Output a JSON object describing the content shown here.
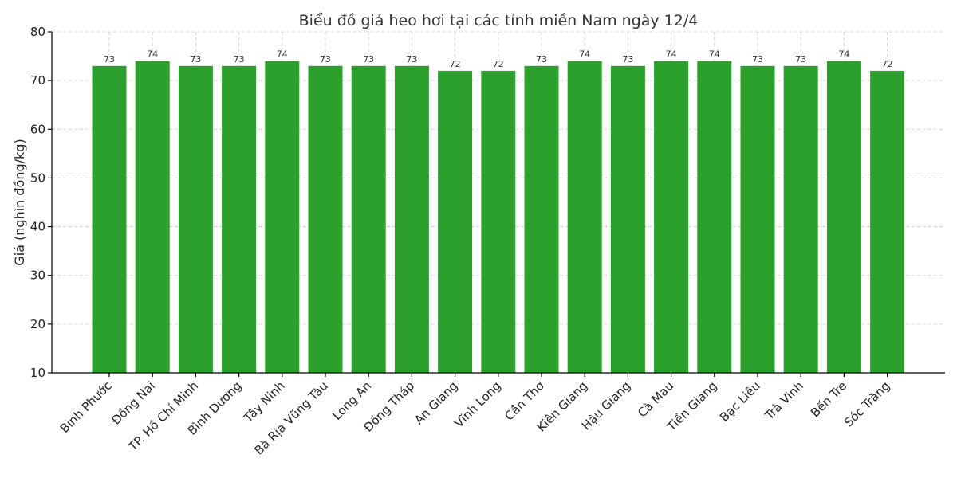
{
  "chart_data": {
    "type": "bar",
    "title": "Biểu đồ giá heo hơi tại các tỉnh miền Nam ngày 12/4",
    "xlabel": "",
    "ylabel": "Giá (nghìn đồng/kg)",
    "ylim": [
      10,
      80
    ],
    "yticks": [
      10,
      20,
      30,
      40,
      50,
      60,
      70,
      80
    ],
    "grid": true,
    "bar_color": "#2ca02c",
    "categories": [
      "Bình Phước",
      "Đồng Nai",
      "TP. Hồ Chí Minh",
      "Bình Dương",
      "Tây Ninh",
      "Bà Rịa  Vũng Tàu",
      "Long An",
      "Đồng Tháp",
      "An Giang",
      "Vĩnh Long",
      "Cần Thơ",
      "Kiên Giang",
      "Hậu Giang",
      "Cà Mau",
      "Tiền Giang",
      "Bạc Liêu",
      "Trà Vinh",
      "Bến Tre",
      "Sóc Trăng"
    ],
    "values": [
      73,
      74,
      73,
      73,
      74,
      73,
      73,
      73,
      72,
      72,
      73,
      74,
      73,
      74,
      74,
      73,
      73,
      74,
      72
    ]
  }
}
